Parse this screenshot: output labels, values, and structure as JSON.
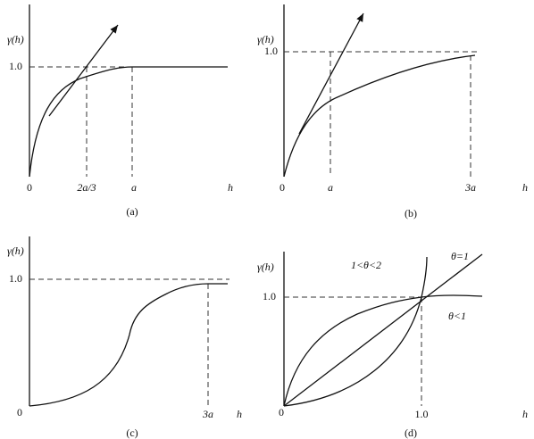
{
  "panels": [
    {
      "y_label": "γ(h)",
      "y_tick": "1.0",
      "origin": "0",
      "x_ticks": [
        "2a/3",
        "a"
      ],
      "x_label": "h",
      "caption": "(a)"
    },
    {
      "y_label": "γ(h)",
      "y_tick": "1.0",
      "origin": "0",
      "x_ticks": [
        "a",
        "3a"
      ],
      "x_label": "h",
      "caption": "(b)"
    },
    {
      "y_label": "γ(h)",
      "y_tick": "1.0",
      "origin": "0",
      "x_ticks": [
        "3a"
      ],
      "x_label": "h",
      "caption": "(c)"
    },
    {
      "y_label": "γ(h)",
      "y_tick": "1.0",
      "origin": "0",
      "x_ticks": [
        "1.0"
      ],
      "x_label": "h",
      "caption": "(d)",
      "annotations": [
        "1<θ<2",
        "θ=1",
        "θ<1"
      ]
    }
  ]
}
